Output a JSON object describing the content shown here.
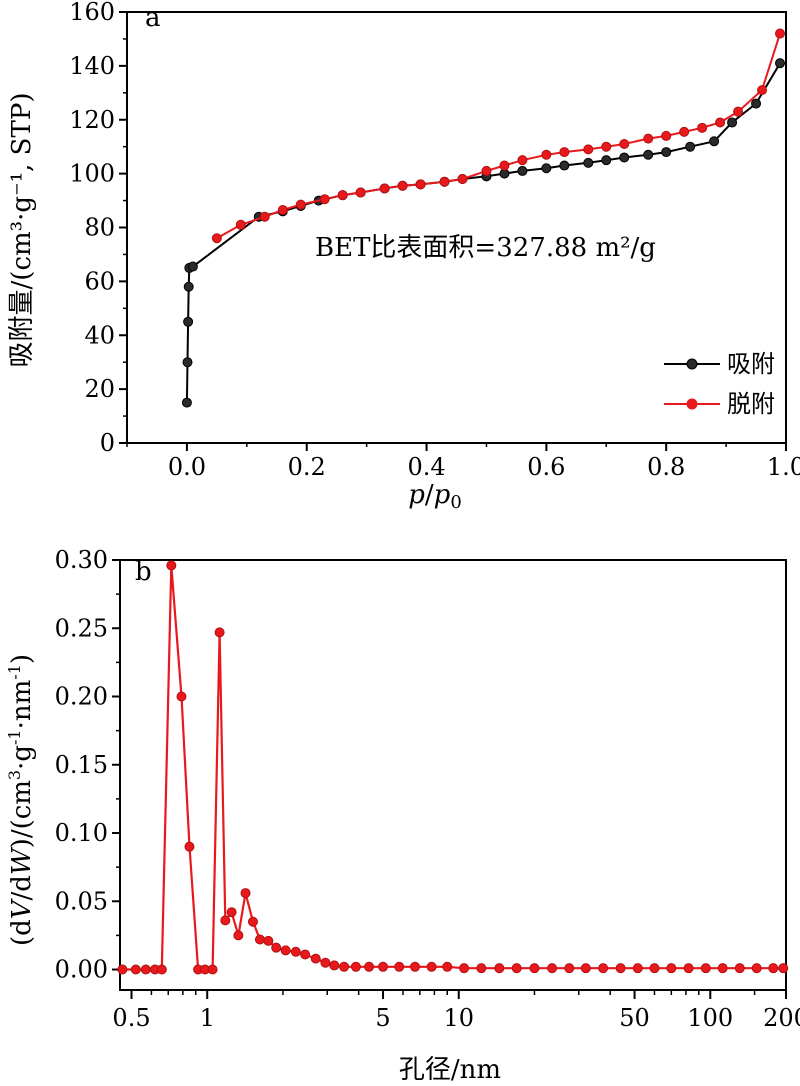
{
  "chart_data": [
    {
      "panel": "a",
      "type": "line",
      "xlabel": "p/p0",
      "ylabel": "吸附量/(cm³·g⁻¹, STP)",
      "xlim": [
        -0.1,
        1.0
      ],
      "ylim": [
        0,
        160
      ],
      "xticks": [
        "0.0",
        "0.2",
        "0.4",
        "0.6",
        "0.8",
        "1.0"
      ],
      "yticks": [
        "0",
        "20",
        "40",
        "60",
        "80",
        "100",
        "120",
        "140",
        "160"
      ],
      "annotation": "BET比表面积=327.88 m²/g",
      "legend_position": "lower-right",
      "grid": false,
      "series": [
        {
          "name": "吸附",
          "color": "#000000",
          "marker_color": "#2a2a2a",
          "x": [
            0.0,
            0.001,
            0.002,
            0.003,
            0.004,
            0.01,
            0.12,
            0.16,
            0.19,
            0.22,
            0.26,
            0.29,
            0.33,
            0.36,
            0.39,
            0.43,
            0.46,
            0.5,
            0.53,
            0.56,
            0.6,
            0.63,
            0.67,
            0.7,
            0.73,
            0.77,
            0.8,
            0.84,
            0.88,
            0.91,
            0.95,
            0.99
          ],
          "y": [
            15,
            30,
            45,
            58,
            65,
            65.5,
            84,
            86,
            88,
            90,
            92,
            93,
            94.5,
            95.5,
            96,
            97,
            98,
            99,
            100,
            101,
            102,
            103,
            104,
            105,
            106,
            107,
            108,
            110,
            112,
            119,
            126,
            141
          ]
        },
        {
          "name": "脱附",
          "color": "#e8191c",
          "marker_color": "#e8191c",
          "x": [
            0.05,
            0.09,
            0.13,
            0.16,
            0.19,
            0.23,
            0.26,
            0.29,
            0.33,
            0.36,
            0.39,
            0.43,
            0.46,
            0.5,
            0.53,
            0.56,
            0.6,
            0.63,
            0.67,
            0.7,
            0.73,
            0.77,
            0.8,
            0.83,
            0.86,
            0.89,
            0.92,
            0.96,
            0.99
          ],
          "y": [
            76,
            81,
            84,
            86.5,
            88.5,
            90.5,
            92,
            93,
            94.5,
            95.5,
            96,
            97,
            98,
            101,
            103,
            105,
            107,
            108,
            109,
            110,
            111,
            113,
            114,
            115.5,
            117,
            119,
            123,
            131,
            152
          ]
        }
      ]
    },
    {
      "panel": "b",
      "type": "line",
      "xlabel": "孔径/nm",
      "ylabel": "(dV/dW)/(cm³·g⁻¹·nm⁻¹)",
      "xscale": "log",
      "xlim": [
        0.45,
        200
      ],
      "ylim": [
        -0.015,
        0.3
      ],
      "xticks": [
        {
          "value": 0.5,
          "label": "0.5"
        },
        {
          "value": 1,
          "label": "1"
        },
        {
          "value": 5,
          "label": "5"
        },
        {
          "value": 10,
          "label": "10"
        },
        {
          "value": 50,
          "label": "50"
        },
        {
          "value": 100,
          "label": "100"
        },
        {
          "value": 200,
          "label": "200"
        }
      ],
      "yticks": [
        "0.00",
        "0.05",
        "0.10",
        "0.15",
        "0.20",
        "0.25",
        "0.30"
      ],
      "grid": false,
      "series": [
        {
          "color": "#e8191c",
          "x": [
            0.46,
            0.52,
            0.57,
            0.62,
            0.66,
            0.72,
            0.79,
            0.85,
            0.92,
            0.98,
            1.05,
            1.12,
            1.18,
            1.25,
            1.33,
            1.42,
            1.52,
            1.62,
            1.75,
            1.88,
            2.05,
            2.25,
            2.45,
            2.7,
            2.95,
            3.2,
            3.5,
            3.9,
            4.4,
            5.0,
            5.8,
            6.7,
            7.8,
            9.0,
            10.5,
            12.3,
            14.5,
            17,
            20,
            23.5,
            27.5,
            32,
            37.5,
            44,
            51.5,
            60,
            70,
            82,
            96,
            112,
            131,
            153,
            178,
            195
          ],
          "y": [
            0,
            0,
            0,
            0,
            0,
            0.296,
            0.2,
            0.09,
            0,
            0,
            0,
            0.247,
            0.036,
            0.042,
            0.025,
            0.056,
            0.035,
            0.022,
            0.021,
            0.016,
            0.014,
            0.013,
            0.011,
            0.008,
            0.005,
            0.003,
            0.002,
            0.002,
            0.002,
            0.002,
            0.002,
            0.002,
            0.002,
            0.002,
            0.001,
            0.001,
            0.001,
            0.001,
            0.001,
            0.001,
            0.001,
            0.001,
            0.001,
            0.001,
            0.001,
            0.001,
            0.001,
            0.001,
            0.001,
            0.001,
            0.001,
            0.001,
            0.001,
            0.001
          ]
        }
      ]
    }
  ],
  "labels": {
    "panel_a": "a",
    "panel_b": "b"
  }
}
